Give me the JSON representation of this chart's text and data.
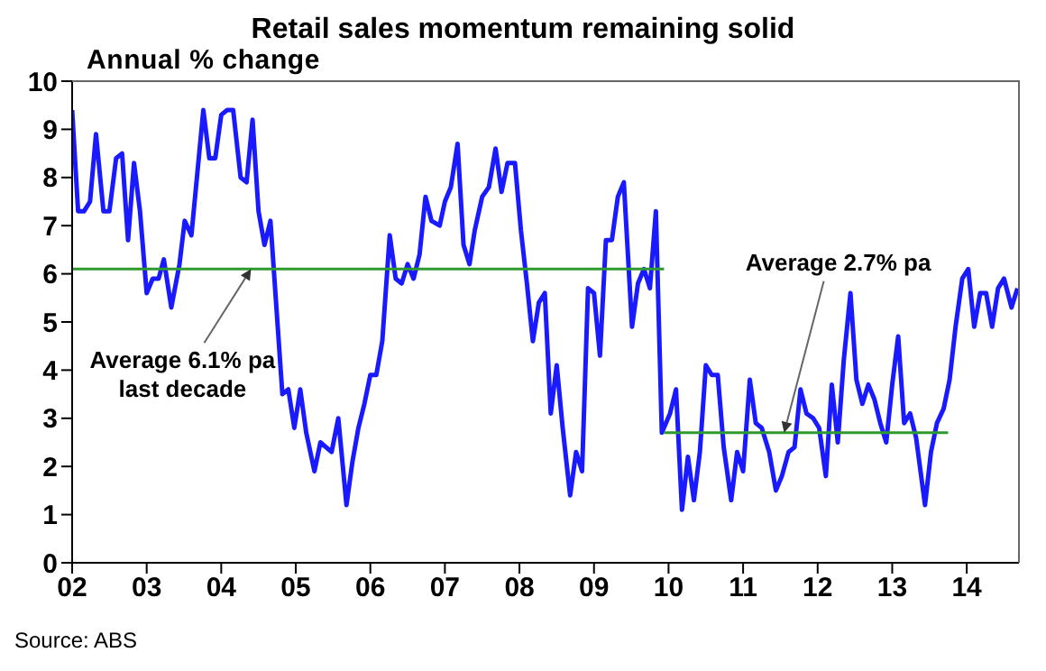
{
  "chart_data": {
    "type": "line",
    "title": "Retail sales momentum remaining solid",
    "subtitle": "Annual % change",
    "xlim": [
      2002,
      2014.7
    ],
    "xticks": [
      {
        "value": 2002,
        "label": "02"
      },
      {
        "value": 2003,
        "label": "03"
      },
      {
        "value": 2004,
        "label": "04"
      },
      {
        "value": 2005,
        "label": "05"
      },
      {
        "value": 2006,
        "label": "06"
      },
      {
        "value": 2007,
        "label": "07"
      },
      {
        "value": 2008,
        "label": "08"
      },
      {
        "value": 2009,
        "label": "09"
      },
      {
        "value": 2010,
        "label": "10"
      },
      {
        "value": 2011,
        "label": "11"
      },
      {
        "value": 2012,
        "label": "12"
      },
      {
        "value": 2013,
        "label": "13"
      },
      {
        "value": 2014,
        "label": "14"
      }
    ],
    "ylim": [
      0,
      10
    ],
    "yticks": [
      0,
      1,
      2,
      3,
      4,
      5,
      6,
      7,
      8,
      9,
      10
    ],
    "series": [
      {
        "color": "#1a1aff",
        "x": [
          2002.0,
          2002.08,
          2002.16,
          2002.24,
          2002.32,
          2002.42,
          2002.5,
          2002.59,
          2002.67,
          2002.75,
          2002.83,
          2002.91,
          2003.0,
          2003.08,
          2003.16,
          2003.23,
          2003.33,
          2003.44,
          2003.51,
          2003.6,
          2003.76,
          2003.84,
          2003.92,
          2004.0,
          2004.08,
          2004.16,
          2004.26,
          2004.34,
          2004.42,
          2004.5,
          2004.58,
          2004.66,
          2004.82,
          2004.9,
          2004.98,
          2005.06,
          2005.14,
          2005.25,
          2005.33,
          2005.48,
          2005.57,
          2005.68,
          2005.76,
          2005.84,
          2005.92,
          2006.0,
          2006.08,
          2006.16,
          2006.26,
          2006.34,
          2006.42,
          2006.5,
          2006.58,
          2006.66,
          2006.74,
          2006.82,
          2006.93,
          2007.0,
          2007.08,
          2007.17,
          2007.25,
          2007.33,
          2007.4,
          2007.5,
          2007.59,
          2007.68,
          2007.76,
          2007.84,
          2007.94,
          2008.02,
          2008.1,
          2008.18,
          2008.26,
          2008.34,
          2008.42,
          2008.5,
          2008.58,
          2008.68,
          2008.76,
          2008.84,
          2008.92,
          2009.0,
          2009.08,
          2009.16,
          2009.24,
          2009.32,
          2009.4,
          2009.51,
          2009.59,
          2009.67,
          2009.75,
          2009.83,
          2009.91,
          2010.02,
          2010.1,
          2010.18,
          2010.26,
          2010.34,
          2010.42,
          2010.5,
          2010.58,
          2010.66,
          2010.74,
          2010.84,
          2010.92,
          2011.0,
          2011.09,
          2011.17,
          2011.25,
          2011.35,
          2011.44,
          2011.52,
          2011.61,
          2011.69,
          2011.77,
          2011.85,
          2011.94,
          2012.02,
          2012.11,
          2012.19,
          2012.27,
          2012.35,
          2012.44,
          2012.52,
          2012.6,
          2012.68,
          2012.76,
          2012.84,
          2012.92,
          2013.0,
          2013.08,
          2013.16,
          2013.24,
          2013.32,
          2013.44,
          2013.52,
          2013.6,
          2013.69,
          2013.77,
          2013.85,
          2013.94,
          2014.02,
          2014.1,
          2014.18,
          2014.26,
          2014.34,
          2014.42,
          2014.5,
          2014.6,
          2014.68
        ],
        "values": [
          9.4,
          7.3,
          7.3,
          7.5,
          8.9,
          7.3,
          7.3,
          8.4,
          8.5,
          6.7,
          8.3,
          7.3,
          5.6,
          5.9,
          5.9,
          6.3,
          5.3,
          6.2,
          7.1,
          6.8,
          9.4,
          8.4,
          8.4,
          9.3,
          9.4,
          9.4,
          8.0,
          7.9,
          9.2,
          7.3,
          6.6,
          7.1,
          3.5,
          3.6,
          2.8,
          3.6,
          2.7,
          1.9,
          2.5,
          2.3,
          3.0,
          1.2,
          2.1,
          2.8,
          3.3,
          3.9,
          3.9,
          4.6,
          6.8,
          5.9,
          5.8,
          6.2,
          5.9,
          6.4,
          7.6,
          7.1,
          7.0,
          7.5,
          7.8,
          8.7,
          6.6,
          6.2,
          6.9,
          7.6,
          7.8,
          8.6,
          7.7,
          8.3,
          8.3,
          6.9,
          5.8,
          4.6,
          5.4,
          5.6,
          3.1,
          4.1,
          2.8,
          1.4,
          2.3,
          1.9,
          5.7,
          5.6,
          4.3,
          6.7,
          6.7,
          7.6,
          7.9,
          4.9,
          5.8,
          6.1,
          5.7,
          7.3,
          2.7,
          3.1,
          3.6,
          1.1,
          2.2,
          1.3,
          2.3,
          4.1,
          3.9,
          3.9,
          2.4,
          1.3,
          2.3,
          1.9,
          3.8,
          2.9,
          2.8,
          2.3,
          1.5,
          1.8,
          2.3,
          2.4,
          3.6,
          3.1,
          3.0,
          2.8,
          1.8,
          3.7,
          2.5,
          4.2,
          5.6,
          3.8,
          3.3,
          3.7,
          3.4,
          2.9,
          2.5,
          3.7,
          4.7,
          2.9,
          3.1,
          2.6,
          1.2,
          2.3,
          2.9,
          3.2,
          3.8,
          4.9,
          5.9,
          6.1,
          4.9,
          5.6,
          5.6,
          4.9,
          5.7,
          5.9,
          5.3,
          5.7
        ]
      },
      {
        "color": "#2e9a2e",
        "x": [
          2002.0,
          2009.94
        ],
        "values": [
          6.1,
          6.1
        ]
      },
      {
        "color": "#2e9a2e",
        "x": [
          2009.94,
          2013.75
        ],
        "values": [
          2.7,
          2.7
        ]
      }
    ],
    "annotations": [
      {
        "text": "Average 6.1% pa\nlast decade",
        "x": 2004.4,
        "y": 6.1
      },
      {
        "text": "Average 2.7% pa",
        "x": 2011.55,
        "y": 2.7
      },
      "Source: ABS"
    ]
  }
}
